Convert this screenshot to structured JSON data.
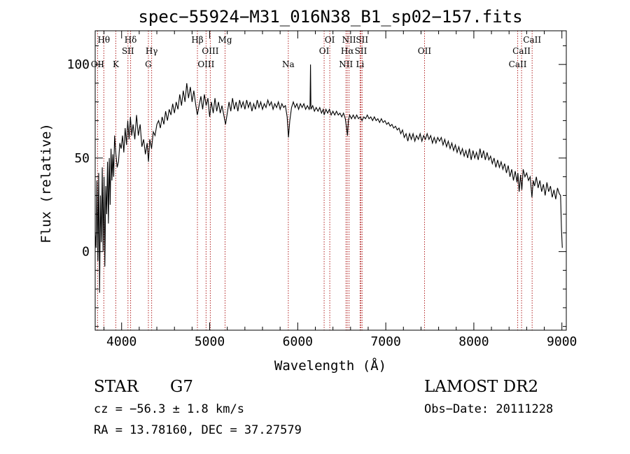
{
  "chart_data": {
    "type": "line",
    "title": "spec−55924−M31_016N38_B1_sp02−157.fits",
    "xlabel": "Wavelength (Å)",
    "ylabel": "Flux (relative)",
    "xlim": [
      3700,
      9050
    ],
    "ylim": [
      -42,
      118
    ],
    "x_ticks": [
      4000,
      5000,
      6000,
      7000,
      8000,
      9000
    ],
    "y_ticks": [
      0,
      50,
      100
    ],
    "grid": false,
    "line_color": "#000000",
    "marker_color": "#b22222",
    "series": [
      {
        "points": [
          [
            3700,
            10
          ],
          [
            3710,
            2
          ],
          [
            3720,
            38
          ],
          [
            3730,
            -5
          ],
          [
            3740,
            42
          ],
          [
            3750,
            -22
          ],
          [
            3760,
            30
          ],
          [
            3770,
            5
          ],
          [
            3780,
            45
          ],
          [
            3790,
            0
          ],
          [
            3800,
            40
          ],
          [
            3810,
            -8
          ],
          [
            3820,
            35
          ],
          [
            3830,
            20
          ],
          [
            3840,
            48
          ],
          [
            3850,
            15
          ],
          [
            3860,
            50
          ],
          [
            3870,
            25
          ],
          [
            3880,
            55
          ],
          [
            3890,
            38
          ],
          [
            3900,
            52
          ],
          [
            3910,
            40
          ],
          [
            3920,
            62
          ],
          [
            3935,
            52
          ],
          [
            3950,
            45
          ],
          [
            3965,
            48
          ],
          [
            3980,
            58
          ],
          [
            3995,
            55
          ],
          [
            4010,
            62
          ],
          [
            4025,
            53
          ],
          [
            4040,
            66
          ],
          [
            4055,
            57
          ],
          [
            4070,
            70
          ],
          [
            4085,
            60
          ],
          [
            4100,
            72
          ],
          [
            4115,
            62
          ],
          [
            4130,
            68
          ],
          [
            4150,
            60
          ],
          [
            4170,
            73
          ],
          [
            4190,
            62
          ],
          [
            4210,
            68
          ],
          [
            4230,
            56
          ],
          [
            4250,
            60
          ],
          [
            4270,
            52
          ],
          [
            4290,
            58
          ],
          [
            4305,
            48
          ],
          [
            4320,
            60
          ],
          [
            4340,
            55
          ],
          [
            4360,
            64
          ],
          [
            4380,
            62
          ],
          [
            4400,
            68
          ],
          [
            4420,
            70
          ],
          [
            4440,
            66
          ],
          [
            4460,
            72
          ],
          [
            4480,
            68
          ],
          [
            4500,
            75
          ],
          [
            4520,
            70
          ],
          [
            4540,
            76
          ],
          [
            4560,
            73
          ],
          [
            4580,
            79
          ],
          [
            4600,
            74
          ],
          [
            4620,
            80
          ],
          [
            4640,
            76
          ],
          [
            4660,
            84
          ],
          [
            4680,
            78
          ],
          [
            4700,
            86
          ],
          [
            4720,
            80
          ],
          [
            4740,
            90
          ],
          [
            4760,
            82
          ],
          [
            4780,
            88
          ],
          [
            4800,
            80
          ],
          [
            4820,
            86
          ],
          [
            4840,
            79
          ],
          [
            4860,
            73
          ],
          [
            4880,
            78
          ],
          [
            4900,
            83
          ],
          [
            4920,
            76
          ],
          [
            4940,
            84
          ],
          [
            4960,
            78
          ],
          [
            4980,
            82
          ],
          [
            5000,
            72
          ],
          [
            5020,
            80
          ],
          [
            5040,
            74
          ],
          [
            5060,
            82
          ],
          [
            5080,
            75
          ],
          [
            5100,
            80
          ],
          [
            5120,
            74
          ],
          [
            5140,
            78
          ],
          [
            5160,
            73
          ],
          [
            5180,
            68
          ],
          [
            5200,
            74
          ],
          [
            5220,
            80
          ],
          [
            5240,
            75
          ],
          [
            5260,
            82
          ],
          [
            5280,
            76
          ],
          [
            5300,
            80
          ],
          [
            5320,
            75
          ],
          [
            5340,
            81
          ],
          [
            5360,
            77
          ],
          [
            5380,
            80
          ],
          [
            5400,
            76
          ],
          [
            5420,
            81
          ],
          [
            5440,
            77
          ],
          [
            5460,
            80
          ],
          [
            5480,
            75
          ],
          [
            5500,
            79
          ],
          [
            5520,
            76
          ],
          [
            5540,
            81
          ],
          [
            5560,
            77
          ],
          [
            5580,
            80
          ],
          [
            5600,
            76
          ],
          [
            5620,
            79
          ],
          [
            5640,
            77
          ],
          [
            5660,
            81
          ],
          [
            5680,
            78
          ],
          [
            5700,
            80
          ],
          [
            5720,
            76
          ],
          [
            5740,
            79
          ],
          [
            5760,
            77
          ],
          [
            5780,
            80
          ],
          [
            5800,
            76
          ],
          [
            5820,
            79
          ],
          [
            5840,
            77
          ],
          [
            5860,
            78
          ],
          [
            5880,
            72
          ],
          [
            5895,
            61
          ],
          [
            5910,
            70
          ],
          [
            5930,
            77
          ],
          [
            5950,
            80
          ],
          [
            5970,
            77
          ],
          [
            5990,
            79
          ],
          [
            6010,
            76
          ],
          [
            6030,
            79
          ],
          [
            6050,
            77
          ],
          [
            6070,
            79
          ],
          [
            6090,
            76
          ],
          [
            6110,
            78
          ],
          [
            6130,
            76
          ],
          [
            6140,
            78
          ],
          [
            6145,
            100
          ],
          [
            6150,
            76
          ],
          [
            6170,
            78
          ],
          [
            6190,
            75
          ],
          [
            6210,
            77
          ],
          [
            6230,
            75
          ],
          [
            6250,
            77
          ],
          [
            6270,
            74
          ],
          [
            6290,
            76
          ],
          [
            6300,
            73
          ],
          [
            6320,
            76
          ],
          [
            6340,
            74
          ],
          [
            6360,
            76
          ],
          [
            6380,
            73
          ],
          [
            6400,
            75
          ],
          [
            6420,
            73
          ],
          [
            6440,
            75
          ],
          [
            6460,
            73
          ],
          [
            6480,
            74
          ],
          [
            6500,
            72
          ],
          [
            6520,
            74
          ],
          [
            6540,
            71
          ],
          [
            6555,
            66
          ],
          [
            6565,
            62
          ],
          [
            6575,
            70
          ],
          [
            6590,
            73
          ],
          [
            6610,
            71
          ],
          [
            6630,
            73
          ],
          [
            6650,
            71
          ],
          [
            6670,
            73
          ],
          [
            6690,
            71
          ],
          [
            6710,
            72
          ],
          [
            6730,
            70
          ],
          [
            6750,
            72
          ],
          [
            6770,
            71
          ],
          [
            6790,
            73
          ],
          [
            6810,
            71
          ],
          [
            6830,
            72
          ],
          [
            6850,
            70
          ],
          [
            6870,
            72
          ],
          [
            6890,
            70
          ],
          [
            6910,
            71
          ],
          [
            6930,
            69
          ],
          [
            6950,
            71
          ],
          [
            6970,
            69
          ],
          [
            6990,
            70
          ],
          [
            7010,
            68
          ],
          [
            7030,
            69
          ],
          [
            7050,
            67
          ],
          [
            7070,
            68
          ],
          [
            7090,
            66
          ],
          [
            7110,
            67
          ],
          [
            7130,
            65
          ],
          [
            7150,
            66
          ],
          [
            7170,
            63
          ],
          [
            7190,
            65
          ],
          [
            7210,
            61
          ],
          [
            7230,
            63
          ],
          [
            7250,
            59
          ],
          [
            7270,
            63
          ],
          [
            7290,
            60
          ],
          [
            7310,
            63
          ],
          [
            7330,
            59
          ],
          [
            7350,
            62
          ],
          [
            7370,
            60
          ],
          [
            7390,
            63
          ],
          [
            7410,
            59
          ],
          [
            7430,
            62
          ],
          [
            7450,
            60
          ],
          [
            7470,
            63
          ],
          [
            7490,
            60
          ],
          [
            7510,
            62
          ],
          [
            7530,
            58
          ],
          [
            7550,
            61
          ],
          [
            7570,
            58
          ],
          [
            7590,
            61
          ],
          [
            7610,
            59
          ],
          [
            7630,
            61
          ],
          [
            7650,
            57
          ],
          [
            7670,
            60
          ],
          [
            7690,
            56
          ],
          [
            7710,
            59
          ],
          [
            7730,
            55
          ],
          [
            7750,
            58
          ],
          [
            7770,
            54
          ],
          [
            7790,
            57
          ],
          [
            7810,
            53
          ],
          [
            7830,
            56
          ],
          [
            7850,
            52
          ],
          [
            7870,
            55
          ],
          [
            7890,
            51
          ],
          [
            7910,
            54
          ],
          [
            7930,
            50
          ],
          [
            7950,
            55
          ],
          [
            7970,
            49
          ],
          [
            7990,
            54
          ],
          [
            8010,
            50
          ],
          [
            8030,
            53
          ],
          [
            8050,
            49
          ],
          [
            8070,
            55
          ],
          [
            8090,
            50
          ],
          [
            8110,
            54
          ],
          [
            8130,
            49
          ],
          [
            8150,
            53
          ],
          [
            8170,
            49
          ],
          [
            8190,
            51
          ],
          [
            8210,
            47
          ],
          [
            8230,
            50
          ],
          [
            8250,
            45
          ],
          [
            8270,
            49
          ],
          [
            8290,
            45
          ],
          [
            8310,
            48
          ],
          [
            8330,
            44
          ],
          [
            8350,
            47
          ],
          [
            8370,
            42
          ],
          [
            8390,
            46
          ],
          [
            8410,
            40
          ],
          [
            8430,
            44
          ],
          [
            8450,
            38
          ],
          [
            8470,
            43
          ],
          [
            8490,
            37
          ],
          [
            8500,
            42
          ],
          [
            8515,
            32
          ],
          [
            8530,
            41
          ],
          [
            8545,
            33
          ],
          [
            8560,
            44
          ],
          [
            8580,
            40
          ],
          [
            8600,
            42
          ],
          [
            8620,
            38
          ],
          [
            8640,
            40
          ],
          [
            8660,
            29
          ],
          [
            8675,
            38
          ],
          [
            8690,
            35
          ],
          [
            8710,
            40
          ],
          [
            8730,
            34
          ],
          [
            8750,
            38
          ],
          [
            8770,
            32
          ],
          [
            8790,
            36
          ],
          [
            8810,
            30
          ],
          [
            8830,
            37
          ],
          [
            8850,
            32
          ],
          [
            8870,
            35
          ],
          [
            8890,
            29
          ],
          [
            8910,
            33
          ],
          [
            8930,
            28
          ],
          [
            8950,
            34
          ],
          [
            8970,
            31
          ],
          [
            8985,
            30
          ],
          [
            8995,
            12
          ],
          [
            9005,
            2
          ]
        ]
      }
    ],
    "line_markers": [
      {
        "wavelength": 3727,
        "label": "OII",
        "row": 3
      },
      {
        "wavelength": 3798,
        "label": "Hθ",
        "row": 1
      },
      {
        "wavelength": 3934,
        "label": "K",
        "row": 3
      },
      {
        "wavelength": 4072,
        "label": "SII",
        "row": 2
      },
      {
        "wavelength": 4102,
        "label": "Hδ",
        "row": 1
      },
      {
        "wavelength": 4304,
        "label": "G",
        "row": 3
      },
      {
        "wavelength": 4341,
        "label": "Hγ",
        "row": 2
      },
      {
        "wavelength": 4861,
        "label": "Hβ",
        "row": 1
      },
      {
        "wavelength": 4959,
        "label": "OIII",
        "row": 3
      },
      {
        "wavelength": 5007,
        "label": "OIII",
        "row": 2
      },
      {
        "wavelength": 5175,
        "label": "Mg",
        "row": 1
      },
      {
        "wavelength": 5893,
        "label": "Na",
        "row": 3
      },
      {
        "wavelength": 6300,
        "label": "OI",
        "row": 2
      },
      {
        "wavelength": 6364,
        "label": "OI",
        "row": 1
      },
      {
        "wavelength": 6548,
        "label": "NII",
        "row": 3
      },
      {
        "wavelength": 6563,
        "label": "Hα",
        "row": 2
      },
      {
        "wavelength": 6583,
        "label": "NII",
        "row": 1
      },
      {
        "wavelength": 6708,
        "label": "Li",
        "row": 3
      },
      {
        "wavelength": 6717,
        "label": "SII",
        "row": 2
      },
      {
        "wavelength": 6731,
        "label": "SII",
        "row": 1
      },
      {
        "wavelength": 7440,
        "label": "OII",
        "row": 2
      },
      {
        "wavelength": 8498,
        "label": "CaII",
        "row": 3
      },
      {
        "wavelength": 8542,
        "label": "CaII",
        "row": 2
      },
      {
        "wavelength": 8662,
        "label": "CaII",
        "row": 1
      }
    ]
  },
  "info": {
    "class_label": "STAR",
    "subclass_label": "G7",
    "survey_label": "LAMOST DR2",
    "redshift_text": "cz = −56.3 ± 1.8 km/s",
    "obs_date_text": "Obs−Date: 20111228",
    "coords_text": "RA =  13.78160, DEC =  37.27579"
  }
}
